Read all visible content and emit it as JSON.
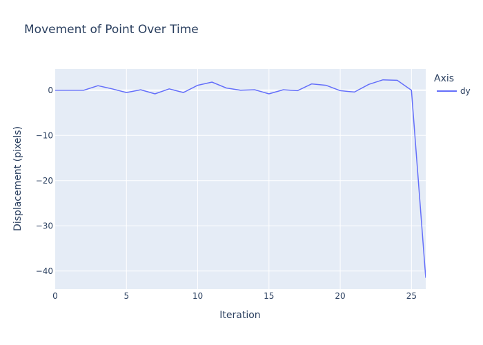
{
  "chart_data": {
    "type": "line",
    "title": "Movement of Point Over Time",
    "xlabel": "Iteration",
    "ylabel": "Displacement (pixels)",
    "xlim": [
      0,
      26
    ],
    "ylim": [
      -44,
      4.7
    ],
    "x_ticks": [
      "0",
      "5",
      "10",
      "15",
      "20",
      "25"
    ],
    "y_ticks": [
      "0",
      "−10",
      "−20",
      "−30",
      "−40"
    ],
    "grid": true,
    "legend_title": "Axis",
    "legend_position": "right",
    "series": [
      {
        "name": "dy",
        "color": "#636efa",
        "x": [
          0,
          1,
          2,
          3,
          4,
          5,
          6,
          7,
          8,
          9,
          10,
          11,
          12,
          13,
          14,
          15,
          16,
          17,
          18,
          19,
          20,
          21,
          22,
          23,
          24,
          25,
          26
        ],
        "values": [
          0,
          0,
          0,
          1.0,
          0.3,
          -0.5,
          0.1,
          -0.8,
          0.3,
          -0.5,
          1.1,
          1.8,
          0.5,
          0,
          0.1,
          -0.8,
          0.1,
          -0.1,
          1.4,
          1.1,
          -0.1,
          -0.4,
          1.3,
          2.3,
          2.2,
          0,
          -41.5
        ]
      }
    ]
  }
}
